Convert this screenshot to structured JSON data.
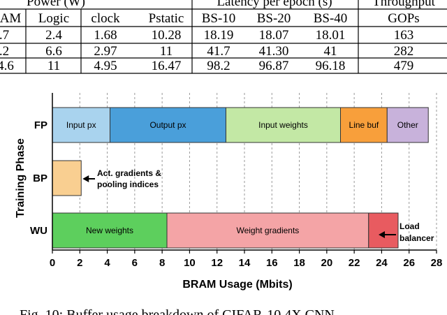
{
  "table": {
    "group_headers": [
      "Power (W)",
      "Latency per epoch (s)",
      "Throughput"
    ],
    "col_headers": [
      "AM",
      "Logic",
      "clock",
      "Pstatic",
      "BS-10",
      "BS-20",
      "BS-40",
      "GOPs"
    ],
    "rows": [
      [
        ".7",
        "2.4",
        "1.68",
        "10.28",
        "18.19",
        "18.07",
        "18.01",
        "163"
      ],
      [
        ".2",
        "6.6",
        "2.97",
        "11",
        "41.7",
        "41.30",
        "41",
        "282"
      ],
      [
        "4.6",
        "11",
        "4.95",
        "16.47",
        "98.2",
        "96.87",
        "96.18",
        "479"
      ]
    ]
  },
  "chart_data": {
    "type": "bar",
    "orientation": "horizontal",
    "stacked": true,
    "categories": [
      "FP",
      "BP",
      "WU"
    ],
    "xlabel": "BRAM Usage (Mbits)",
    "ylabel": "Training Phase",
    "xlim": [
      0,
      28
    ],
    "xticks": [
      0,
      2,
      4,
      6,
      8,
      10,
      12,
      14,
      16,
      18,
      20,
      22,
      24,
      26,
      28
    ],
    "grid": "vertical-dashed",
    "bars": [
      {
        "category": "FP",
        "segments": [
          {
            "label": "Input px",
            "value": 4.2,
            "color": "#a9d3ee"
          },
          {
            "label": "Output px",
            "value": 8.45,
            "color": "#4a9fda"
          },
          {
            "label": "Input weights",
            "value": 8.35,
            "color": "#c3e8a5"
          },
          {
            "label": "Line buf",
            "value": 3.4,
            "color": "#f89f3b"
          },
          {
            "label": "Other",
            "value": 3.0,
            "color": "#c8b2db"
          }
        ]
      },
      {
        "category": "BP",
        "segments": [
          {
            "label": "",
            "value": 2.1,
            "color": "#f9cf91"
          }
        ]
      },
      {
        "category": "WU",
        "segments": [
          {
            "label": "New weights",
            "value": 8.35,
            "color": "#5dcf5d"
          },
          {
            "label": "Weight gradients",
            "value": 14.7,
            "color": "#f4a4a6"
          },
          {
            "label": "",
            "value": 2.15,
            "color": "#e85b60"
          }
        ]
      }
    ],
    "annotations": [
      {
        "category": "BP",
        "lines": [
          "Act. gradients &",
          "pooling indices"
        ]
      },
      {
        "category": "WU",
        "lines": [
          "Load",
          "balancer"
        ]
      }
    ]
  },
  "caption": "Fig. 10: Buffer usage breakdown of CIFAR-10 4X CNN"
}
